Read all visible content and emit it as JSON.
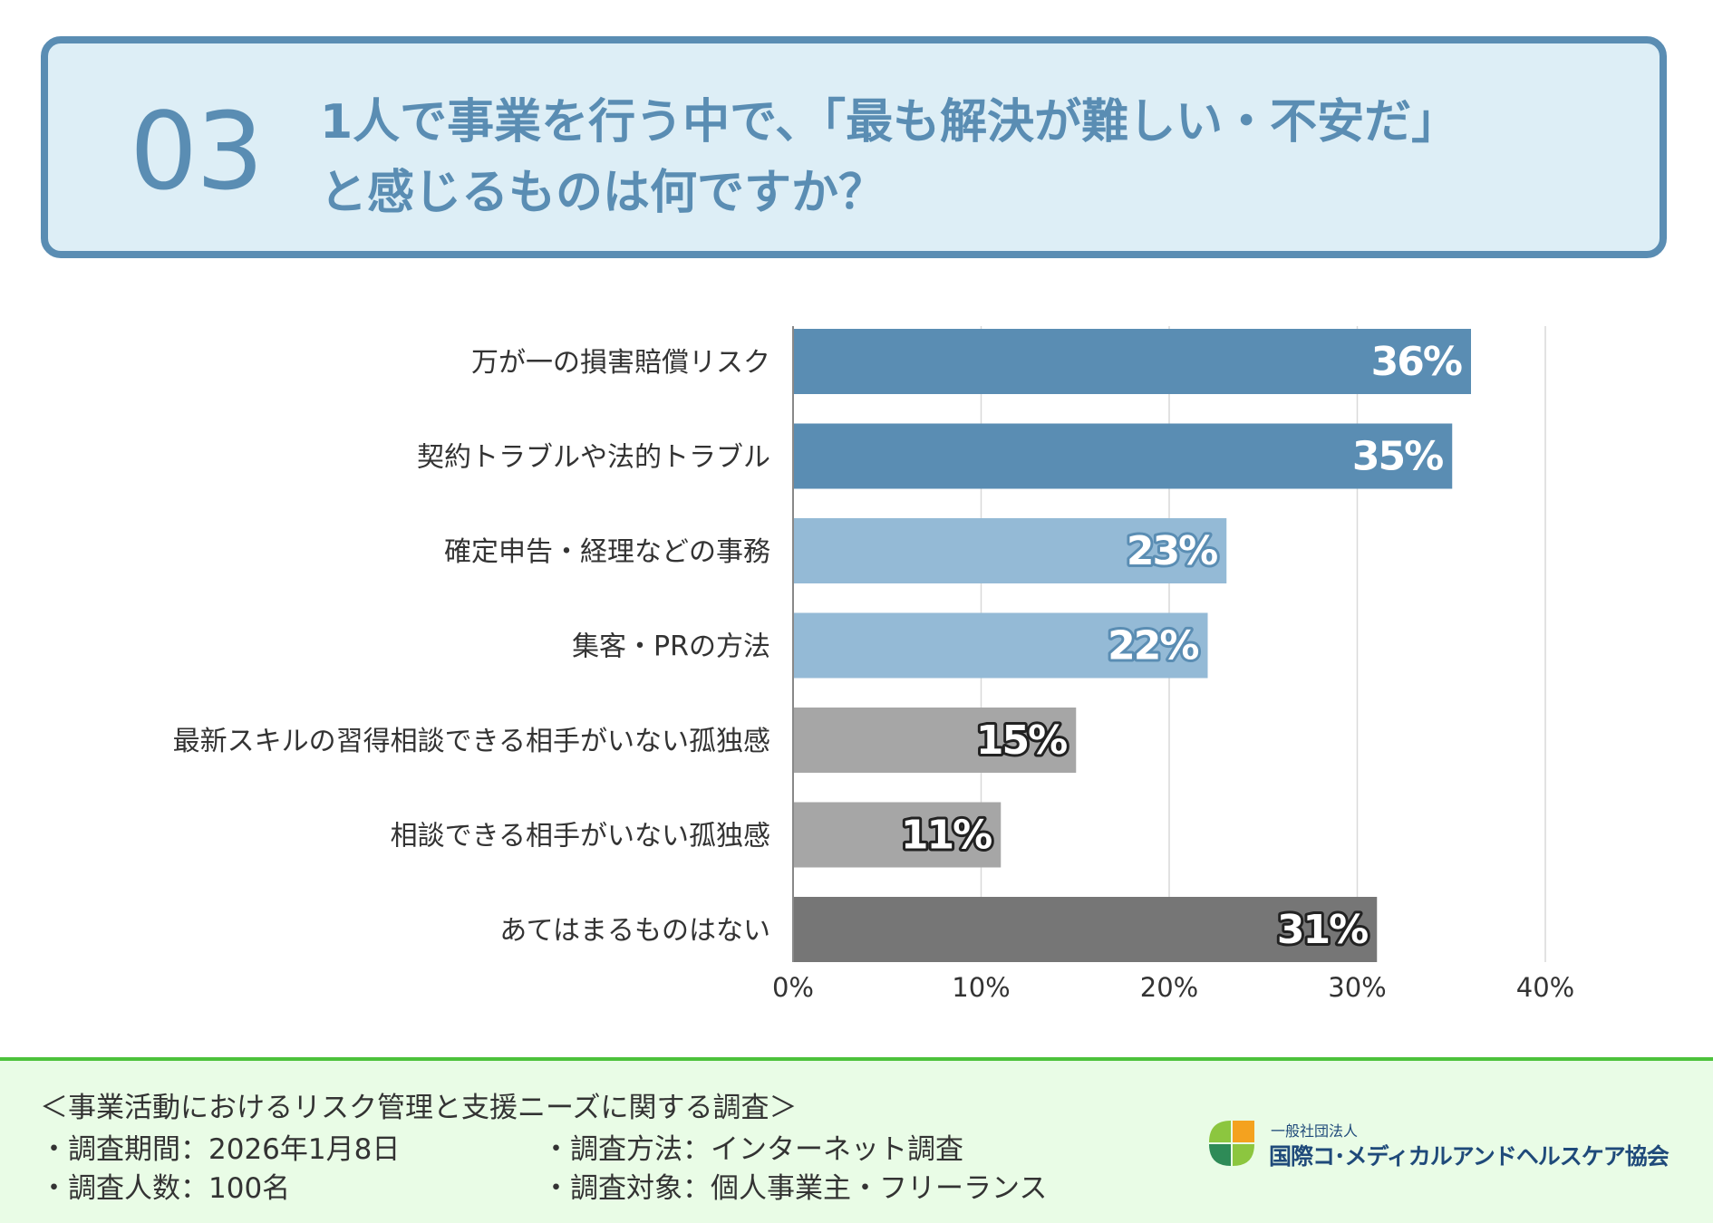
{
  "header": {
    "number": "03",
    "title_line1": "1人で事業を行う中で、「最も解決が難しい・不安だ」",
    "title_line2": "と感じるものは何ですか？"
  },
  "chart_data": {
    "type": "bar",
    "orientation": "horizontal",
    "categories": [
      "万が一の損害賠償リスク",
      "契約トラブルや法的トラブル",
      "確定申告・経理などの事務",
      "集客・PRの方法",
      "最新スキルの習得相談できる相手がいない孤独感",
      "相談できる相手がいない孤独感",
      "あてはまるものはない"
    ],
    "values": [
      36,
      35,
      23,
      22,
      15,
      11,
      31
    ],
    "data_labels": [
      "36%",
      "35%",
      "23%",
      "22%",
      "15%",
      "11%",
      "31%"
    ],
    "bar_colors": [
      "#5a8db3",
      "#5a8db3",
      "#94bad6",
      "#94bad6",
      "#a6a6a6",
      "#a6a6a6",
      "#767676"
    ],
    "label_outline_colors": [
      "#5a8db3",
      "#5a8db3",
      "#5a8db3",
      "#5a8db3",
      "#222222",
      "#222222",
      "#222222"
    ],
    "label_fill_colors": [
      "#ffffff",
      "#ffffff",
      "#ffffff",
      "#ffffff",
      "#ffffff",
      "#ffffff",
      "#ffffff"
    ],
    "xlim": [
      0,
      40
    ],
    "xticks": [
      0,
      10,
      20,
      30,
      40
    ],
    "xtick_labels": [
      "0%",
      "10%",
      "20%",
      "30%",
      "40%"
    ],
    "grid": true,
    "title": "",
    "xlabel": "",
    "ylabel": ""
  },
  "footer": {
    "survey_title": "＜事業活動におけるリスク管理と支援ニーズに関する調査＞",
    "period": "・調査期間：2026年1月8日",
    "respondents": "・調査人数：100名",
    "method": "・調査方法：インターネット調査",
    "target": "・調査対象：個人事業主・フリーランス"
  },
  "logo": {
    "subtitle": "一般社団法人",
    "name": "国際コ･メディカルアンドヘルスケア協会",
    "colors": [
      "#f4a21f",
      "#8cc63f",
      "#4cae3c",
      "#2e8b57"
    ]
  }
}
